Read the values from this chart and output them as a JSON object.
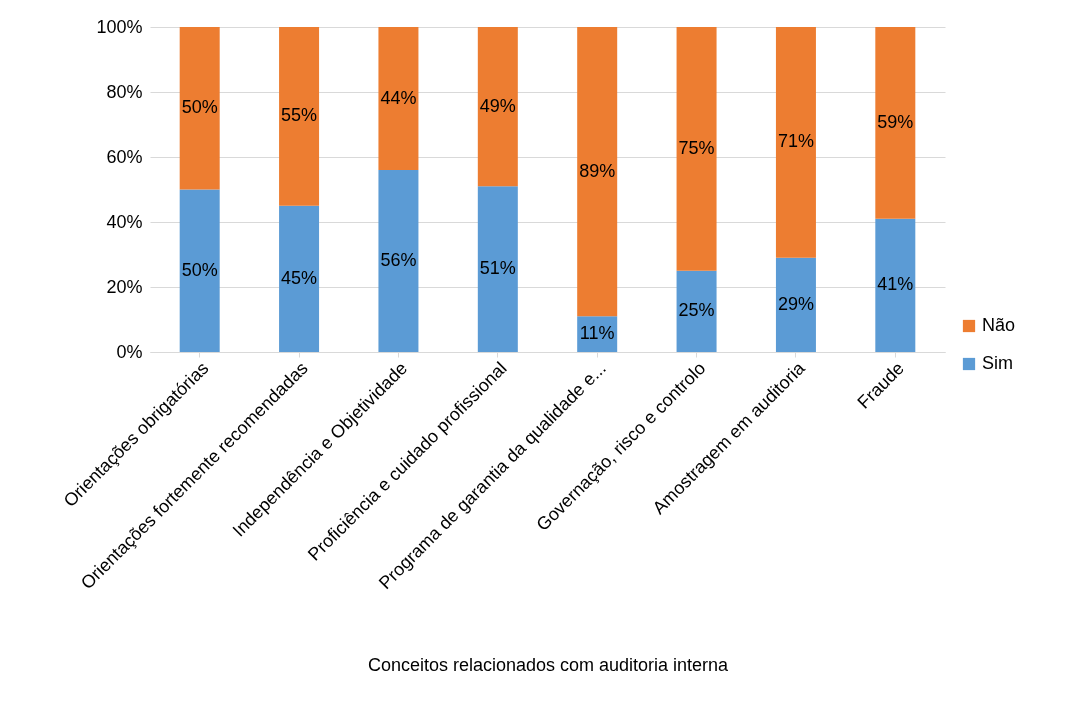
{
  "chart_data": {
    "type": "bar",
    "stacked": true,
    "xlabel": "Conceitos  relacionados com auditoria interna",
    "categories": [
      "Orientações obrigatórias",
      "Orientações fortemente recomendadas",
      "Independência e Objetividade",
      "Proficiência e cuidado profissional",
      "Programa de garantia da qualidade e...",
      "Governação, risco e controlo",
      "Amostragem em auditoria",
      "Fraude"
    ],
    "series": [
      {
        "name": "Sim",
        "color": "#5b9bd5",
        "values": [
          50,
          45,
          56,
          51,
          11,
          25,
          29,
          41
        ],
        "value_labels": [
          "50%",
          "45%",
          "56%",
          "51%",
          "11%",
          "25%",
          "29%",
          "41%"
        ]
      },
      {
        "name": "Não",
        "color": "#ed7d31",
        "values": [
          50,
          55,
          44,
          49,
          89,
          75,
          71,
          59
        ],
        "value_labels": [
          "50%",
          "55%",
          "44%",
          "49%",
          "89%",
          "75%",
          "71%",
          "59%"
        ]
      }
    ],
    "ylim": [
      0,
      100
    ],
    "yticks": [
      {
        "value": 0,
        "label": "0%"
      },
      {
        "value": 20,
        "label": "20%"
      },
      {
        "value": 40,
        "label": "40%"
      },
      {
        "value": 60,
        "label": "60%"
      },
      {
        "value": 80,
        "label": "80%"
      },
      {
        "value": 100,
        "label": "100%"
      }
    ],
    "grid": "y",
    "legend": "right"
  }
}
